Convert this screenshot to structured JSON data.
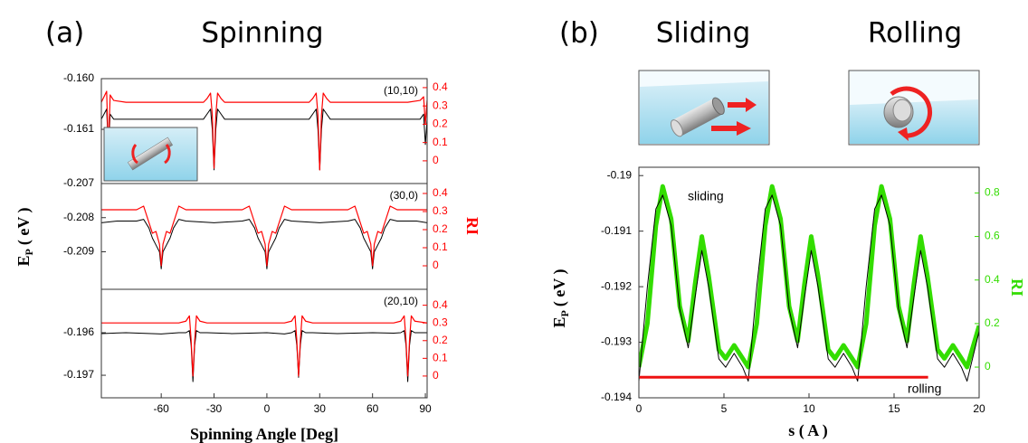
{
  "figure": {
    "panel_a": "(a)",
    "panel_a_title": "Spinning",
    "panel_b": "(b)",
    "sliding_title": "Sliding",
    "rolling_title": "Rolling"
  },
  "chart_data": [
    {
      "type": "line",
      "label": "(10,10)",
      "x": [
        -94,
        -91,
        -90,
        -89,
        -87,
        -80,
        -70,
        -60,
        -50,
        -40,
        -36,
        -34,
        -32,
        -31,
        -30,
        -29,
        -28,
        -26,
        -24,
        -20,
        -10,
        0,
        10,
        20,
        24,
        26,
        28,
        29,
        30,
        31,
        32,
        34,
        36,
        40,
        50,
        60,
        70,
        80,
        87,
        89,
        90,
        91
      ],
      "xlim": [
        -94,
        91
      ],
      "ylim": [
        -0.16207,
        -0.16
      ],
      "yticks": [
        {
          "value": -0.16,
          "label": "-0.160"
        },
        -0.161
      ],
      "y2lim": [
        -0.124,
        0.449
      ],
      "y2ticks": [
        0,
        0.1,
        0.2,
        0.3,
        0.4
      ],
      "y2_color": "#ff0000",
      "series": [
        {
          "color": "#000000",
          "line_width": 1,
          "values": [
            -0.1608,
            -0.1606,
            -0.1614,
            -0.1607,
            -0.1608,
            -0.1608,
            -0.1608,
            -0.1608,
            -0.1608,
            -0.1608,
            -0.1608,
            -0.1607,
            -0.1606,
            -0.161,
            -0.1618,
            -0.161,
            -0.1606,
            -0.1607,
            -0.1608,
            -0.1608,
            -0.1608,
            -0.1608,
            -0.1608,
            -0.1608,
            -0.1608,
            -0.1607,
            -0.1606,
            -0.161,
            -0.1618,
            -0.161,
            -0.1606,
            -0.1607,
            -0.1608,
            -0.1608,
            -0.1608,
            -0.1608,
            -0.1608,
            -0.1608,
            -0.1608,
            -0.1607,
            -0.1613,
            -0.1608
          ]
        },
        {
          "color": "#ff0000",
          "line_width": 1.2,
          "axis": "y2",
          "values": [
            0.32,
            0.38,
            0.05,
            0.36,
            0.33,
            0.32,
            0.32,
            0.32,
            0.32,
            0.32,
            0.32,
            0.34,
            0.37,
            0.25,
            -0.04,
            0.25,
            0.37,
            0.34,
            0.32,
            0.32,
            0.32,
            0.32,
            0.32,
            0.32,
            0.32,
            0.34,
            0.37,
            0.25,
            -0.05,
            0.25,
            0.37,
            0.34,
            0.32,
            0.32,
            0.32,
            0.32,
            0.32,
            0.32,
            0.33,
            0.35,
            0.2,
            0.33
          ]
        }
      ]
    },
    {
      "type": "line",
      "label": "(30,0)",
      "ylabel": "E",
      "ylabel_sub": "P",
      "ylabel_unit": "( eV )",
      "y2label": "RI",
      "x": [
        -94,
        -85,
        -74,
        -70,
        -67,
        -65,
        -63,
        -61,
        -60,
        -59,
        -57,
        -55,
        -53,
        -50,
        -46,
        -30,
        -14,
        -10,
        -7,
        -5,
        -3,
        -1,
        0,
        1,
        3,
        5,
        7,
        10,
        14,
        30,
        46,
        50,
        53,
        55,
        57,
        59,
        60,
        61,
        63,
        65,
        67,
        70,
        74,
        85,
        91
      ],
      "xlim": [
        -94,
        91
      ],
      "ylim": [
        -0.2101,
        -0.207
      ],
      "yticks": [
        -0.207,
        -0.208,
        -0.209
      ],
      "y2lim": [
        -0.13,
        0.455
      ],
      "y2ticks": [
        0,
        0.1,
        0.2,
        0.3,
        0.4
      ],
      "y2_color": "#ff0000",
      "series": [
        {
          "color": "#000000",
          "line_width": 1,
          "values": [
            -0.20815,
            -0.2081,
            -0.2081,
            -0.20805,
            -0.2083,
            -0.2086,
            -0.2088,
            -0.209,
            -0.2095,
            -0.209,
            -0.2088,
            -0.2086,
            -0.2083,
            -0.20805,
            -0.2081,
            -0.20815,
            -0.2081,
            -0.20805,
            -0.2083,
            -0.2086,
            -0.2088,
            -0.209,
            -0.2095,
            -0.209,
            -0.2088,
            -0.2086,
            -0.2083,
            -0.20805,
            -0.2081,
            -0.20815,
            -0.2081,
            -0.20805,
            -0.2083,
            -0.2086,
            -0.2088,
            -0.209,
            -0.2095,
            -0.209,
            -0.2088,
            -0.2086,
            -0.2083,
            -0.20805,
            -0.2081,
            -0.2081,
            -0.20815
          ]
        },
        {
          "color": "#ff0000",
          "line_width": 1.2,
          "axis": "y2",
          "values": [
            0.31,
            0.31,
            0.31,
            0.33,
            0.24,
            0.18,
            0.19,
            0.12,
            0,
            0.12,
            0.19,
            0.18,
            0.24,
            0.33,
            0.31,
            0.31,
            0.31,
            0.33,
            0.24,
            0.18,
            0.19,
            0.12,
            0,
            0.12,
            0.19,
            0.18,
            0.24,
            0.33,
            0.31,
            0.31,
            0.31,
            0.33,
            0.24,
            0.18,
            0.19,
            0.12,
            0,
            0.12,
            0.19,
            0.18,
            0.24,
            0.33,
            0.31,
            0.31,
            0.31
          ]
        }
      ]
    },
    {
      "type": "line",
      "label": "(20,10)",
      "xlabel": "Spinning Angle [Deg]",
      "x": [
        -94,
        -80,
        -60,
        -50,
        -46,
        -44,
        -43,
        -42,
        -41,
        -40,
        -38,
        -34,
        -20,
        0,
        10,
        14,
        16,
        17,
        18,
        19,
        20,
        22,
        26,
        40,
        60,
        72,
        76,
        78,
        79,
        80,
        81,
        82,
        84,
        91
      ],
      "xlim": [
        -94,
        91
      ],
      "xticks": [
        -60,
        -30,
        0,
        30,
        60,
        90
      ],
      "ylim": [
        -0.19753,
        -0.19498
      ],
      "yticks": [
        -0.196,
        -0.197
      ],
      "y2lim": [
        -0.123,
        0.49
      ],
      "y2ticks": [
        0,
        0.1,
        0.2,
        0.3,
        0.4
      ],
      "y2_color": "#ff0000",
      "series": [
        {
          "color": "#000000",
          "line_width": 1,
          "values": [
            -0.19602,
            -0.196,
            -0.19603,
            -0.196,
            -0.196,
            -0.19595,
            -0.1963,
            -0.19715,
            -0.1963,
            -0.19595,
            -0.196,
            -0.196,
            -0.19602,
            -0.196,
            -0.19603,
            -0.196,
            -0.19595,
            -0.1963,
            -0.19705,
            -0.1963,
            -0.19595,
            -0.196,
            -0.196,
            -0.19602,
            -0.196,
            -0.19601,
            -0.196,
            -0.19595,
            -0.1963,
            -0.19715,
            -0.1963,
            -0.19595,
            -0.196,
            -0.196
          ]
        },
        {
          "color": "#ff0000",
          "line_width": 1.2,
          "axis": "y2",
          "values": [
            0.3,
            0.3,
            0.3,
            0.3,
            0.31,
            0.34,
            0.2,
            0,
            0.2,
            0.34,
            0.31,
            0.3,
            0.3,
            0.3,
            0.3,
            0.31,
            0.34,
            0.2,
            0,
            0.2,
            0.34,
            0.31,
            0.3,
            0.3,
            0.3,
            0.3,
            0.31,
            0.34,
            0.2,
            0,
            0.2,
            0.34,
            0.31,
            0.3
          ]
        }
      ]
    },
    {
      "type": "line",
      "xlabel": "s ( A )",
      "ylabel": "E",
      "ylabel_sub": "P",
      "ylabel_unit": "( eV )",
      "y2label": "RI",
      "annotations": [
        "sliding",
        "rolling"
      ],
      "x": [
        0,
        0.5,
        1,
        1.4,
        1.9,
        2.4,
        2.9,
        3.3,
        3.7,
        4.1,
        4.7,
        5.1,
        5.6,
        6.1,
        6.43,
        6.93,
        7.43,
        7.83,
        8.33,
        8.83,
        9.33,
        9.73,
        10.13,
        10.53,
        11.13,
        11.53,
        12.03,
        12.53,
        12.86,
        13.36,
        13.86,
        14.26,
        14.76,
        15.26,
        15.76,
        16.16,
        16.56,
        16.96,
        17.56,
        17.96,
        18.46,
        18.96,
        19.29,
        20
      ],
      "xlim": [
        0,
        20
      ],
      "xticks": [
        0,
        5,
        10,
        15,
        20
      ],
      "ylim": [
        -0.194,
        -0.18985
      ],
      "yticks": [
        -0.19,
        -0.191,
        -0.192,
        -0.193,
        -0.194
      ],
      "y2lim": [
        -0.141,
        0.918
      ],
      "y2ticks": [
        0,
        0.2,
        0.4,
        0.6,
        0.8
      ],
      "y2_color": "#33dd00",
      "series": [
        {
          "color": "#33dd00",
          "line_width": 5,
          "axis": "y2",
          "values": [
            0,
            0.2,
            0.65,
            0.83,
            0.68,
            0.28,
            0.12,
            0.38,
            0.6,
            0.42,
            0.08,
            0.04,
            0.1,
            0.04,
            0,
            0.2,
            0.65,
            0.83,
            0.68,
            0.28,
            0.12,
            0.38,
            0.6,
            0.42,
            0.08,
            0.04,
            0.1,
            0.04,
            0,
            0.2,
            0.65,
            0.83,
            0.68,
            0.28,
            0.12,
            0.38,
            0.6,
            0.42,
            0.08,
            0.04,
            0.1,
            0.04,
            0,
            0.19
          ]
        },
        {
          "color": "#000000",
          "line_width": 1,
          "values": [
            -0.1937,
            -0.192,
            -0.1906,
            -0.19035,
            -0.1909,
            -0.1924,
            -0.1931,
            -0.1922,
            -0.19135,
            -0.192,
            -0.1933,
            -0.19345,
            -0.1932,
            -0.19345,
            -0.1937,
            -0.192,
            -0.1906,
            -0.19035,
            -0.1909,
            -0.1924,
            -0.1931,
            -0.1922,
            -0.19135,
            -0.192,
            -0.1933,
            -0.19345,
            -0.1932,
            -0.19345,
            -0.1937,
            -0.192,
            -0.1906,
            -0.19035,
            -0.1909,
            -0.1924,
            -0.1931,
            -0.1922,
            -0.19135,
            -0.192,
            -0.1933,
            -0.19345,
            -0.1932,
            -0.19345,
            -0.1937,
            -0.1928
          ]
        },
        {
          "color": "#ee1111",
          "line_width": 3,
          "x": [
            0,
            17
          ],
          "values": [
            -0.19363,
            -0.19363
          ]
        }
      ]
    }
  ]
}
